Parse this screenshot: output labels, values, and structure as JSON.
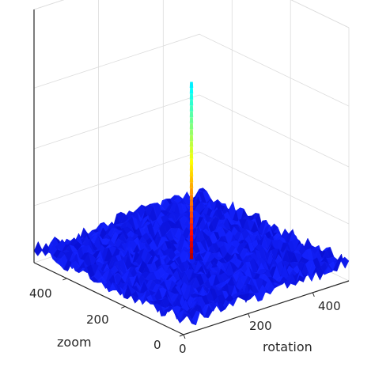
{
  "chart_data": {
    "type": "surface-3d",
    "title": "",
    "xlabel": "rotation",
    "ylabel": "zoom",
    "zlabel": "",
    "x_ticks": [
      "0",
      "200",
      "400"
    ],
    "y_ticks": [
      "0",
      "200",
      "400"
    ],
    "z_ticks": [
      "",
      "",
      "",
      ""
    ],
    "xlim": [
      0,
      512
    ],
    "ylim": [
      0,
      512
    ],
    "zlim": [
      0,
      1
    ],
    "grid": true,
    "colormap": "jet",
    "surface": {
      "description_free": true,
      "baseline_level": 0.05,
      "noise_amplitude": 0.03,
      "peak": {
        "rotation": 256,
        "zoom": 256,
        "value": 0.75
      }
    },
    "colors": {
      "low": "#0000ff",
      "mid": "#00ff80",
      "high": "#ff0000",
      "grid": "#dcdcdc",
      "axis": "#262626"
    }
  }
}
